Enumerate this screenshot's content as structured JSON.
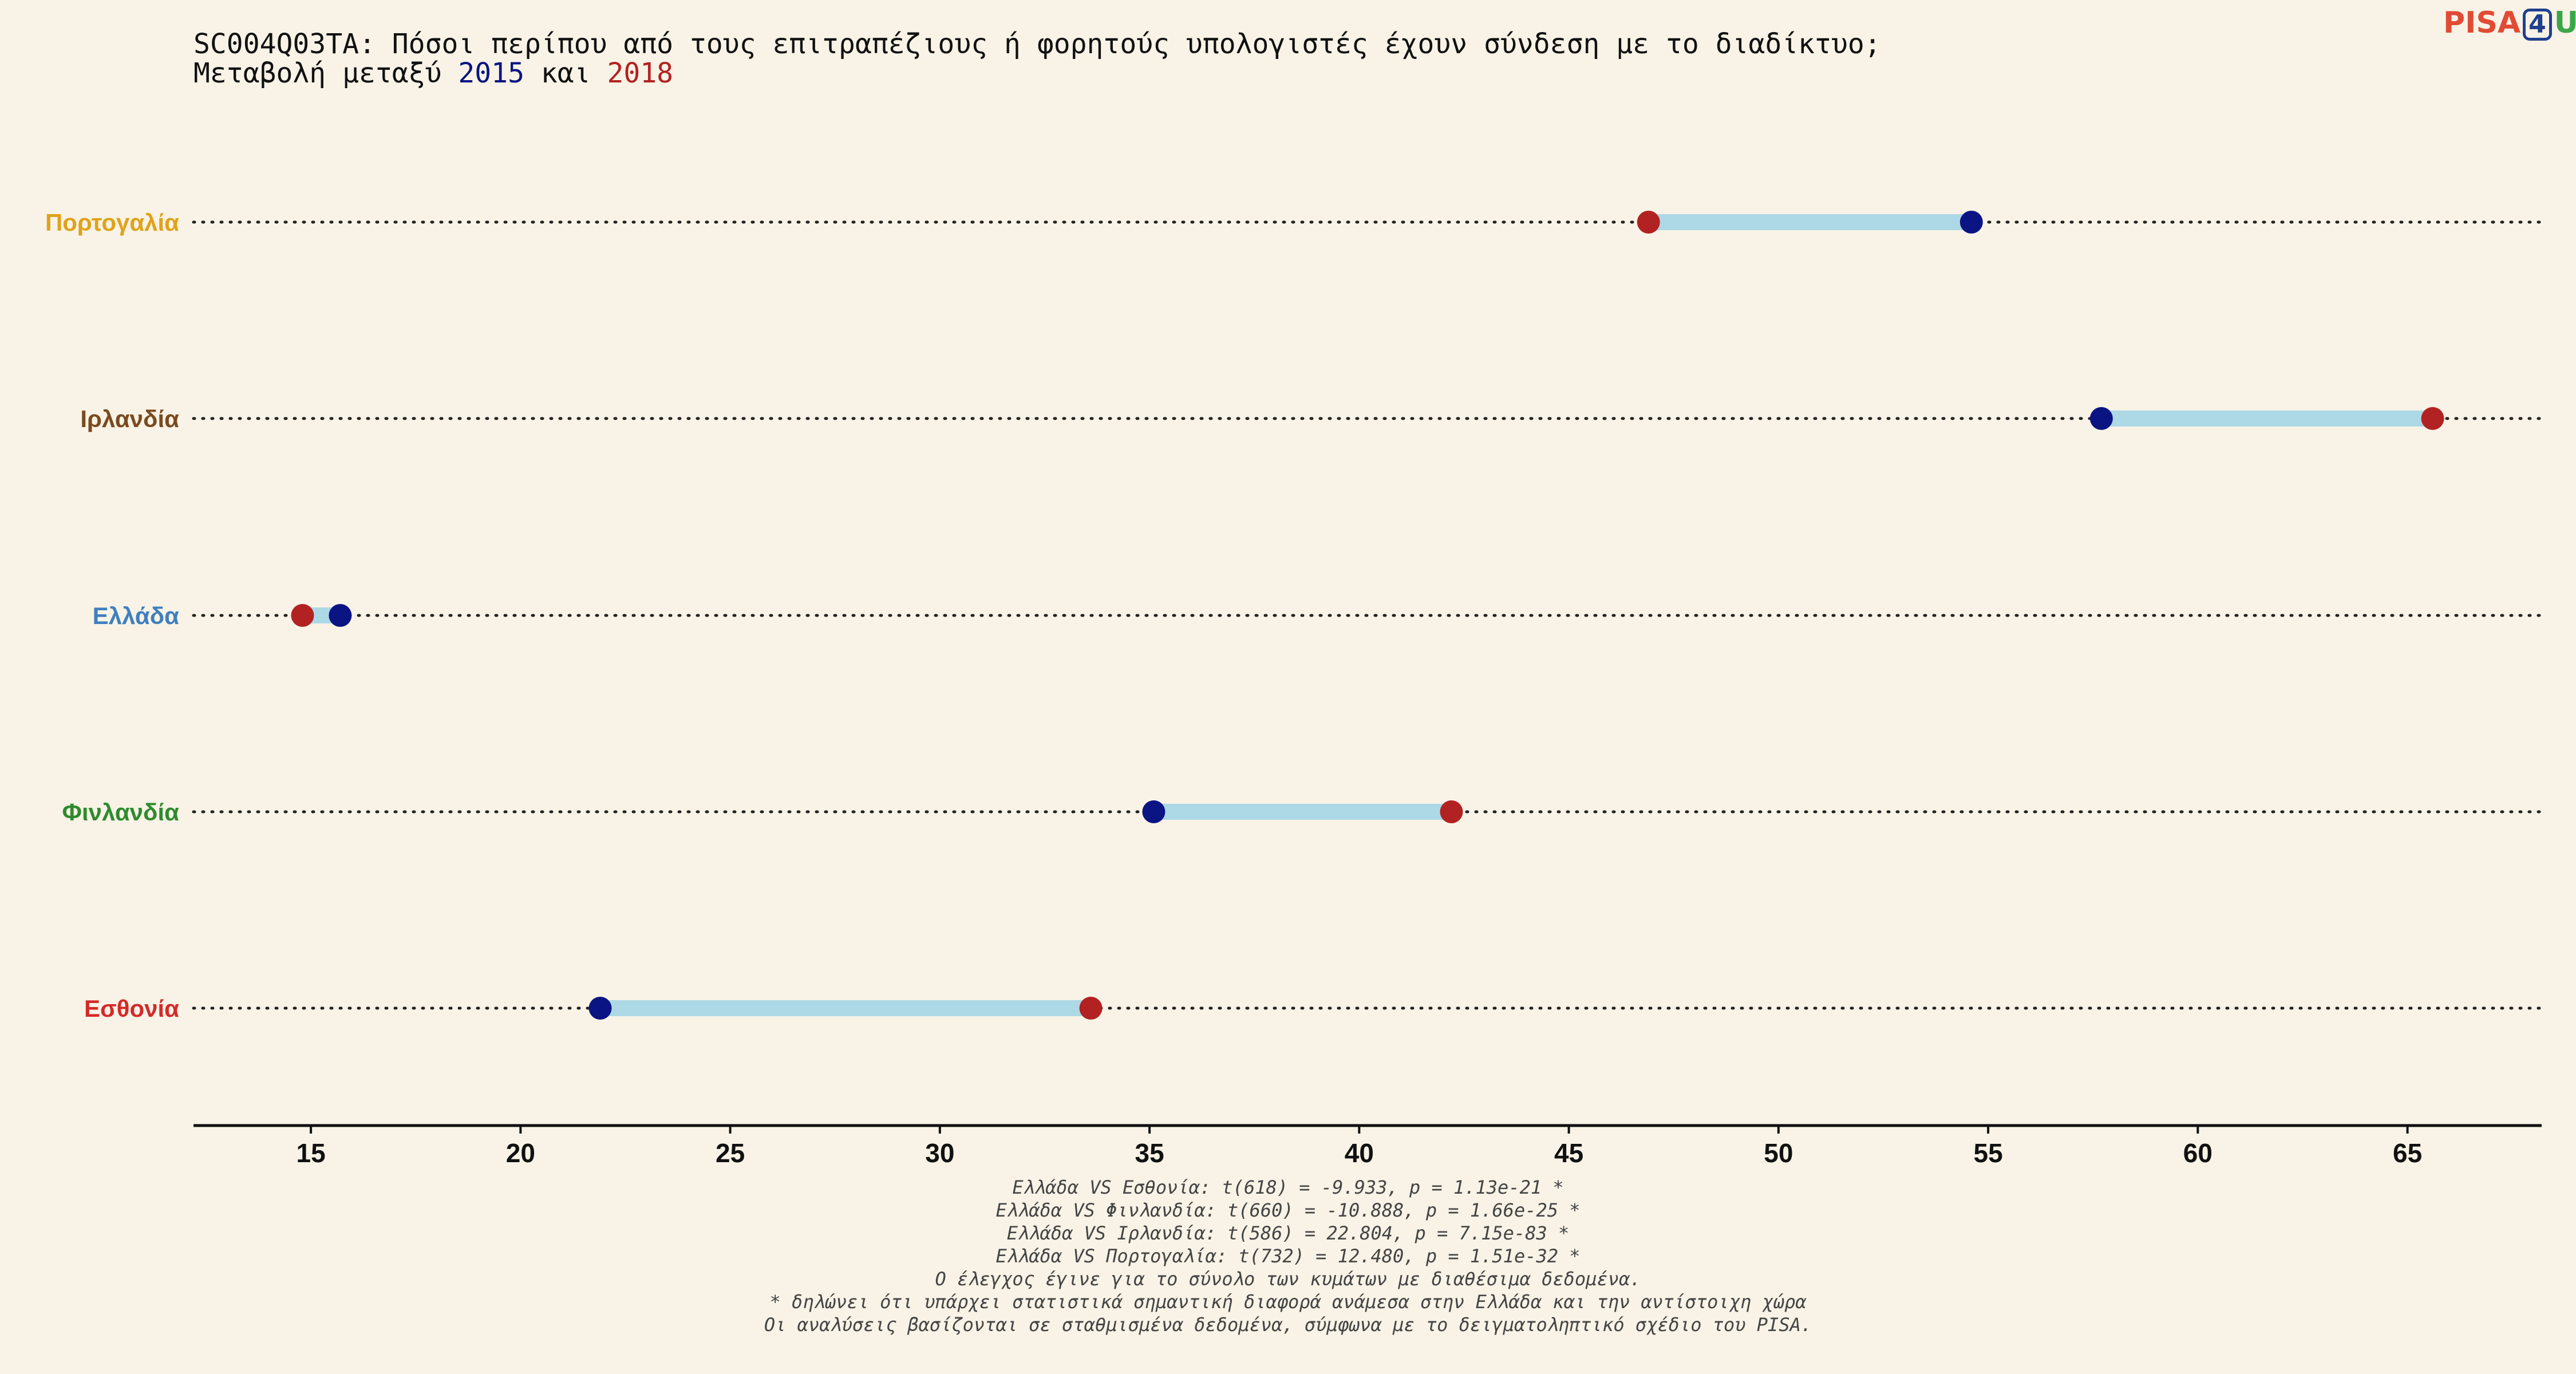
{
  "logo": {
    "part1": "PISA",
    "part2": "4",
    "part3": "U"
  },
  "title_line1": "SC004Q03TA: Πόσοι περίπου από τους επιτραπέζιους ή φορητούς υπολογιστές έχουν σύνδεση με το διαδίκτυο;",
  "title_line2": {
    "prefix": "Μεταβολή μεταξύ ",
    "year1": "2015",
    "middle": " και ",
    "year2": "2018"
  },
  "colors": {
    "background": "#f8f3e6",
    "year_2015": "#0b1483",
    "year_2018": "#b22222",
    "connector": "#add8e6",
    "portugal": "#e0a21a",
    "ireland": "#7a4a1e",
    "greece": "#3f7fbf",
    "finland": "#2e8b2e",
    "estonia": "#d42a2a"
  },
  "chart_data": {
    "type": "dumbbell",
    "xlim": [
      12.2,
      68.2
    ],
    "xticks": [
      15,
      20,
      25,
      30,
      35,
      40,
      45,
      50,
      55,
      60,
      65
    ],
    "grid": "dotted horizontal line per category",
    "categories": [
      {
        "label": "Πορτογαλία",
        "color": "#e0a21a",
        "v2015": 54.6,
        "v2018": 46.9
      },
      {
        "label": "Ιρλανδία",
        "color": "#7a4a1e",
        "v2015": 57.7,
        "v2018": 65.6
      },
      {
        "label": "Ελλάδα",
        "color": "#3f7fbf",
        "v2015": 15.7,
        "v2018": 14.8
      },
      {
        "label": "Φινλανδία",
        "color": "#2e8b2e",
        "v2015": 35.1,
        "v2018": 42.2
      },
      {
        "label": "Εσθονία",
        "color": "#d42a2a",
        "v2015": 21.9,
        "v2018": 33.6
      }
    ]
  },
  "footnotes": [
    "Ελλάδα VS Εσθονία: t(618) = -9.933, p = 1.13e-21 *",
    "Ελλάδα VS Φινλανδία: t(660) = -10.888, p = 1.66e-25 *",
    "Ελλάδα VS Ιρλανδία: t(586) = 22.804, p = 7.15e-83 *",
    "Ελλάδα VS Πορτογαλία: t(732) = 12.480, p = 1.51e-32 *",
    "Ο έλεγχος έγινε για το σύνολο των κυμάτων με διαθέσιμα δεδομένα.",
    "* δηλώνει ότι υπάρχει στατιστικά σημαντική διαφορά ανάμεσα στην Ελλάδα και την αντίστοιχη χώρα",
    "Οι αναλύσεις βασίζονται σε σταθμισμένα δεδομένα, σύμφωνα με το δειγματοληπτικό σχέδιο του PISA."
  ]
}
